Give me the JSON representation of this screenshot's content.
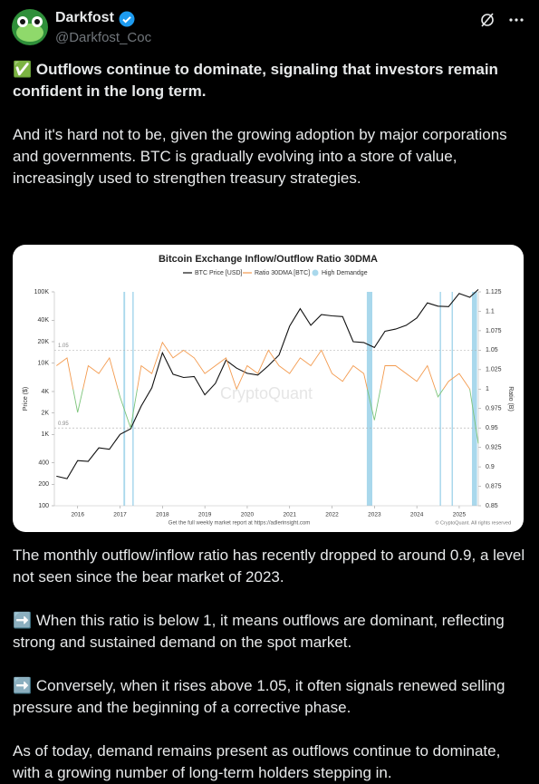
{
  "tweet": {
    "author": {
      "name": "Darkfost",
      "handle": "@Darkfost_Coc"
    },
    "headline": "✅ Outflows continue to dominate, signaling that investors remain confident in the long term.",
    "paragraphs": [
      "And it's hard not to be, given the growing adoption by major corporations and governments. BTC is gradually evolving into a store of value, increasingly used to strengthen treasury strategies.",
      "The monthly outflow/inflow ratio has recently dropped to around 0.9,  a level not seen since the bear market of 2023.",
      "➡️ When this ratio is below 1, it means outflows are dominant, reflecting strong and sustained demand on the spot market.",
      "➡️ Conversely, when it rises above 1.05, it often signals renewed selling pressure and the beginning of a corrective phase.",
      "As of today, demand remains present as outflows continue to dominate, with a growing number of long-term holders stepping in."
    ]
  },
  "chart_data": {
    "type": "line",
    "title": "Bitcoin Exchange Inflow/Outflow Ratio 30DMA",
    "y_label": "Price ($)",
    "y2_label": "Ratio (B)",
    "watermark": "CryptoQuant",
    "footer": "Get the full weekly market report at https://adlerinsight.com",
    "copyright": "© CryptoQuant. All rights reserved",
    "x": [
      2015.5,
      2015.75,
      2016,
      2016.25,
      2016.5,
      2016.75,
      2017,
      2017.25,
      2017.5,
      2017.75,
      2018,
      2018.25,
      2018.5,
      2018.75,
      2019,
      2019.25,
      2019.5,
      2019.75,
      2020,
      2020.25,
      2020.5,
      2020.75,
      2021,
      2021.25,
      2021.5,
      2021.75,
      2022,
      2022.25,
      2022.5,
      2022.75,
      2023,
      2023.25,
      2023.5,
      2023.75,
      2024,
      2024.25,
      2024.5,
      2024.75,
      2025,
      2025.25,
      2025.45
    ],
    "series": [
      {
        "name": "BTC Price [USD]",
        "color": "#111111",
        "values": [
          260,
          240,
          430,
          420,
          650,
          620,
          1000,
          1200,
          2500,
          4500,
          14000,
          7000,
          6300,
          6500,
          3600,
          5200,
          11000,
          8500,
          7200,
          6800,
          9200,
          13000,
          33000,
          58000,
          34000,
          48000,
          46000,
          45000,
          20000,
          19500,
          16600,
          28000,
          30000,
          34000,
          43000,
          70000,
          63000,
          62000,
          95000,
          84000,
          108000
        ]
      },
      {
        "name": "Ratio 30DMA [BTC]",
        "color": "#f39a4e",
        "below_color": "#7cc47a",
        "axis": "y2",
        "values": [
          1.03,
          1.04,
          0.97,
          1.03,
          1.02,
          1.04,
          0.99,
          0.95,
          1.03,
          1.02,
          1.06,
          1.04,
          1.05,
          1.04,
          1.02,
          1.03,
          1.04,
          1.0,
          1.03,
          1.02,
          1.05,
          1.03,
          1.02,
          1.04,
          1.03,
          1.05,
          1.02,
          1.01,
          1.03,
          1.02,
          0.96,
          1.03,
          1.03,
          1.02,
          1.01,
          1.03,
          0.99,
          1.01,
          1.02,
          1.0,
          0.93
        ]
      }
    ],
    "bands": {
      "name": "High Demandge",
      "color": "#a9d8ec",
      "ranges": [
        [
          2017.08,
          2017.12
        ],
        [
          2017.29,
          2017.31
        ],
        [
          2022.82,
          2022.95
        ],
        [
          2024.54,
          2024.57
        ],
        [
          2024.82,
          2024.85
        ],
        [
          2025.3,
          2025.42
        ]
      ]
    },
    "ref_lines": [
      {
        "value": 1.05,
        "label": "1.05"
      },
      {
        "value": 0.95,
        "label": "0.95"
      }
    ],
    "xlim": [
      2015.45,
      2025.45
    ],
    "xticks": [
      2016,
      2017,
      2018,
      2019,
      2020,
      2021,
      2022,
      2023,
      2024,
      2025
    ],
    "ylog": true,
    "ylim": [
      100,
      100000
    ],
    "yticks": [
      {
        "value": 100000,
        "label": "100K"
      },
      {
        "value": 40000,
        "label": "40K"
      },
      {
        "value": 20000,
        "label": "20K"
      },
      {
        "value": 10000,
        "label": "10K"
      },
      {
        "value": 4000,
        "label": "4K"
      },
      {
        "value": 2000,
        "label": "2K"
      },
      {
        "value": 1000,
        "label": "1K"
      },
      400,
      200,
      100
    ],
    "y2lim": [
      0.85,
      1.125
    ],
    "y2ticks": [
      1.125,
      1.1,
      1.075,
      1.05,
      1.025,
      1,
      0.975,
      0.95,
      0.925,
      0.9,
      0.875,
      0.85
    ]
  }
}
